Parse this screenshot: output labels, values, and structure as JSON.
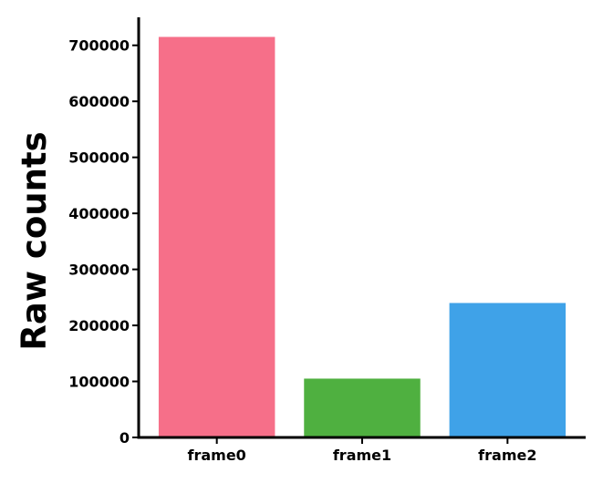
{
  "chart_data": {
    "type": "bar",
    "categories": [
      "frame0",
      "frame1",
      "frame2"
    ],
    "values": [
      715000,
      105000,
      240000
    ],
    "colors": [
      "#f66f89",
      "#4fb040",
      "#3fa2e8"
    ],
    "title": "",
    "xlabel": "",
    "ylabel": "Raw counts",
    "ylim": [
      0,
      750000
    ],
    "yticks": [
      0,
      100000,
      200000,
      300000,
      400000,
      500000,
      600000,
      700000
    ],
    "ytick_labels": [
      "0",
      "100000",
      "200000",
      "300000",
      "400000",
      "500000",
      "600000",
      "700000"
    ],
    "grid": false,
    "legend": "none"
  }
}
